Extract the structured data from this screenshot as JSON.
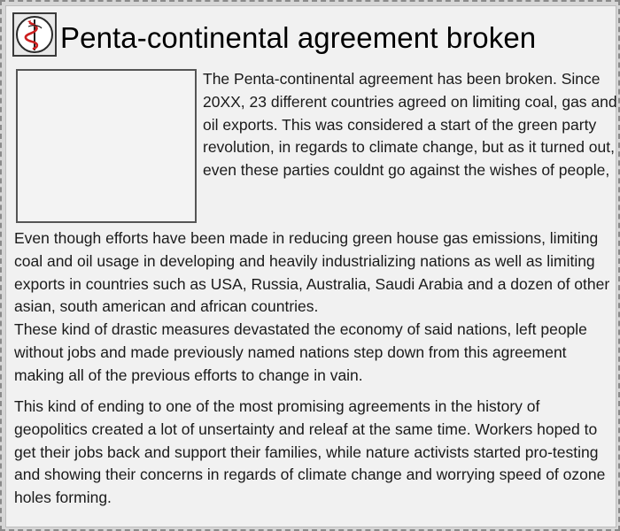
{
  "article": {
    "title": "Penta-continental agreement broken",
    "intro": "The Penta-continental agreement has been broken. Since 20XX, 23 different countries agreed on limiting coal, gas and oil exports. This was considered a start of the green party revolution, in regards to climate change, but as it turned out, even these parties couldnt go against the wishes of people,",
    "paragraph1": "Even though efforts have been made in reducing green house gas emissions, limiting coal and oil usage in developing and heavily industrializing nations as well as limiting exports in countries such as USA, Russia, Australia, Saudi Arabia and a dozen of other asian, south american and african countries.",
    "paragraph2": "These kind of drastic measures devastated the economy of said nations, left people without jobs and made previously named nations step down from this agreement making all of the previous efforts to change in vain.",
    "paragraph3": "This kind of ending to one of the most promising agreements in the history of geopolitics created a lot of unsertainty and releaf at the same time. Workers hoped to get their jobs back and support their families, while nature activists started pro-testing and showing their concerns in regards of climate change and worrying speed of ozone holes forming."
  },
  "icons": {
    "logo": "caduceus-emblem-icon"
  },
  "colors": {
    "logo_red": "#cc1f1f",
    "text": "#1a1a1a",
    "background": "#f1f1f1"
  }
}
